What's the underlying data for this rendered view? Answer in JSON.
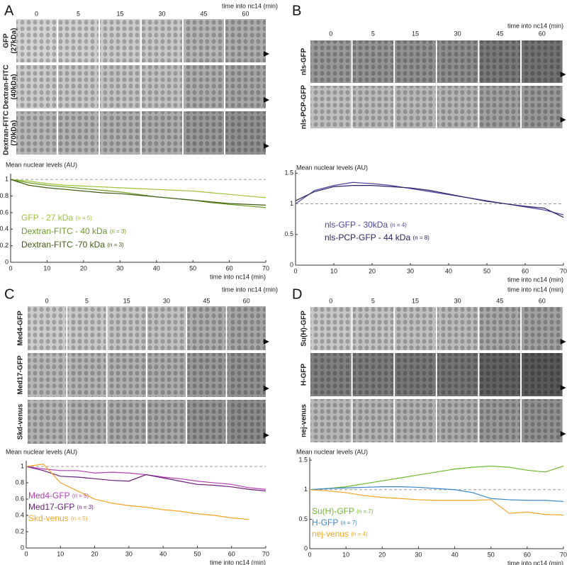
{
  "panels": [
    {
      "letter": "A",
      "time_label": "time into nc14 (min)",
      "times": [
        0,
        5,
        15,
        30,
        45,
        60
      ],
      "rows": [
        [
          "GFP",
          "(27kDa)"
        ],
        [
          "Dextran-FITC",
          "(40kDa)"
        ],
        [
          "Dextran-FITC",
          "(70kDa)"
        ]
      ]
    },
    {
      "letter": "B",
      "time_label": "time into nc14 (min)",
      "times": [
        0,
        5,
        15,
        30,
        45,
        60
      ],
      "rows": [
        [
          "nls-GFP"
        ],
        [
          "nls-PCP-GFP"
        ]
      ]
    },
    {
      "letter": "C",
      "time_label": "time into nc14 (min)",
      "times": [
        0,
        5,
        15,
        30,
        45,
        60
      ],
      "rows": [
        [
          "Med4-GFP"
        ],
        [
          "Med17-GFP"
        ],
        [
          "Skd-venus"
        ]
      ]
    },
    {
      "letter": "D",
      "time_label": "time into nc14 (min)",
      "times": [
        0,
        5,
        15,
        30,
        45,
        60
      ],
      "rows": [
        [
          "Su(H)-GFP"
        ],
        [
          "H-GFP"
        ],
        [
          "nej-venus"
        ]
      ]
    }
  ],
  "chart_data": [
    {
      "type": "line",
      "ylabel": "Mean nuclear levels (AU)",
      "xlabel": "time into nc14 (min)",
      "xlim": [
        0,
        70
      ],
      "xticks": [
        0,
        10,
        20,
        30,
        40,
        50,
        60,
        70
      ],
      "ylim": [
        0,
        1.07
      ],
      "yticks": [
        0,
        0.2,
        0.4,
        0.6,
        0.8,
        1
      ],
      "hline": 1,
      "legend": "lower-left",
      "x": [
        0,
        5,
        10,
        15,
        20,
        25,
        30,
        35,
        40,
        45,
        50,
        55,
        60,
        65,
        70
      ],
      "series": [
        {
          "name": "GFP - 27 kDa",
          "n_label": "(n = 5)",
          "color": "#9dc33b",
          "values": [
            1,
            0.98,
            0.95,
            0.93,
            0.92,
            0.91,
            0.9,
            0.89,
            0.88,
            0.87,
            0.86,
            0.84,
            0.82,
            0.8,
            0.78
          ]
        },
        {
          "name": "Dextran-FITC  - 40 kDa",
          "n_label": "(n = 3)",
          "color": "#6a9a1f",
          "values": [
            1,
            0.96,
            0.93,
            0.91,
            0.89,
            0.87,
            0.85,
            0.82,
            0.79,
            0.77,
            0.75,
            0.72,
            0.7,
            0.68,
            0.66
          ]
        },
        {
          "name": "Dextran-FITC -70 kDa",
          "n_label": "(n = 3)",
          "color": "#3d5a12",
          "values": [
            1,
            0.93,
            0.9,
            0.88,
            0.86,
            0.84,
            0.83,
            0.81,
            0.79,
            0.77,
            0.75,
            0.73,
            0.71,
            0.7,
            0.69
          ]
        }
      ]
    },
    {
      "type": "line",
      "ylabel": "Mean nuclear levels (AU)",
      "xlabel": "time into nc14 (min)",
      "xlim": [
        0,
        70
      ],
      "xticks": [
        0,
        10,
        20,
        30,
        40,
        50,
        60,
        70
      ],
      "ylim": [
        0,
        1.55
      ],
      "yticks": [
        0,
        0.5,
        1,
        1.5
      ],
      "hline": 1,
      "legend": "lower-left",
      "x": [
        0,
        5,
        10,
        15,
        20,
        25,
        30,
        35,
        40,
        45,
        50,
        55,
        60,
        65,
        70
      ],
      "series": [
        {
          "name": "nls-GFP - 30kDa",
          "n_label": "(n = 4)",
          "color": "#4a47a3",
          "values": [
            1,
            1.22,
            1.3,
            1.35,
            1.33,
            1.3,
            1.25,
            1.2,
            1.15,
            1.1,
            1.05,
            1.0,
            0.95,
            0.9,
            0.82
          ]
        },
        {
          "name": "nls-PCP-GFP - 44 kDa",
          "n_label": "(n = 8)",
          "color": "#2b2360",
          "values": [
            1.05,
            1.2,
            1.28,
            1.3,
            1.3,
            1.28,
            1.26,
            1.22,
            1.16,
            1.1,
            1.04,
            1.0,
            0.96,
            0.93,
            0.78
          ]
        }
      ]
    },
    {
      "type": "line",
      "ylabel": "Mean nuclear levels (AU)",
      "xlabel": "time into nc14 (min)",
      "xlim": [
        0,
        70
      ],
      "xticks": [
        0,
        10,
        20,
        30,
        40,
        50,
        60,
        70
      ],
      "ylim": [
        0,
        1.07
      ],
      "yticks": [
        0,
        0.2,
        0.4,
        0.6,
        0.8,
        1
      ],
      "hline": 1,
      "legend": "lower-left",
      "x": [
        0,
        5,
        10,
        15,
        20,
        25,
        30,
        35,
        40,
        45,
        50,
        55,
        60,
        65,
        70
      ],
      "series": [
        {
          "name": "Med4-GFP",
          "n_label": "(n = 5)",
          "color": "#b43cb4",
          "values": [
            1,
            0.97,
            0.95,
            0.95,
            0.92,
            0.93,
            0.92,
            0.9,
            0.87,
            0.85,
            0.82,
            0.8,
            0.78,
            0.74,
            0.72
          ]
        },
        {
          "name": "Med17-GFP",
          "n_label": "(n = 3)",
          "color": "#6a1e7a",
          "values": [
            1,
            0.95,
            0.88,
            0.87,
            0.85,
            0.83,
            0.82,
            0.9,
            0.86,
            0.82,
            0.78,
            0.77,
            0.75,
            0.72,
            0.7
          ]
        },
        {
          "name": "Skd-venus",
          "n_label": "(n = 5)",
          "color": "#f5a623",
          "values": [
            1,
            1.03,
            0.8,
            0.7,
            0.6,
            0.55,
            0.52,
            0.5,
            0.47,
            0.45,
            0.42,
            0.4,
            0.37,
            0.35,
            null
          ]
        }
      ]
    },
    {
      "type": "line",
      "ylabel": "Mean nuclear levels (AU)",
      "xlabel": "time into nc14 (min)",
      "xlim": [
        0,
        70
      ],
      "xticks": [
        0,
        10,
        20,
        30,
        40,
        50,
        60,
        70
      ],
      "ylim": [
        0,
        1.55
      ],
      "yticks": [
        0,
        0.5,
        1,
        1.5
      ],
      "hline": 1,
      "legend": "lower-left",
      "x": [
        0,
        5,
        10,
        15,
        20,
        25,
        30,
        35,
        40,
        45,
        50,
        55,
        60,
        65,
        70
      ],
      "series": [
        {
          "name": "Su(H)-GFP",
          "n_label": "(n = 7)",
          "color": "#6fb92c",
          "values": [
            1,
            1.02,
            1.05,
            1.1,
            1.15,
            1.2,
            1.25,
            1.3,
            1.35,
            1.38,
            1.4,
            1.38,
            1.33,
            1.3,
            1.4
          ]
        },
        {
          "name": "H-GFP",
          "n_label": "(n = 7)",
          "color": "#3a86c8",
          "values": [
            1,
            1.02,
            1.03,
            1.04,
            1.05,
            1.05,
            1.04,
            1.02,
            1.0,
            0.95,
            0.85,
            0.83,
            0.82,
            0.82,
            0.8
          ]
        },
        {
          "name": "nej-venus",
          "n_label": "(n = 4)",
          "color": "#f5a623",
          "values": [
            1,
            0.98,
            0.95,
            0.9,
            0.87,
            0.85,
            0.83,
            0.82,
            0.82,
            0.82,
            0.83,
            0.6,
            0.62,
            0.58,
            0.57
          ]
        }
      ]
    }
  ]
}
